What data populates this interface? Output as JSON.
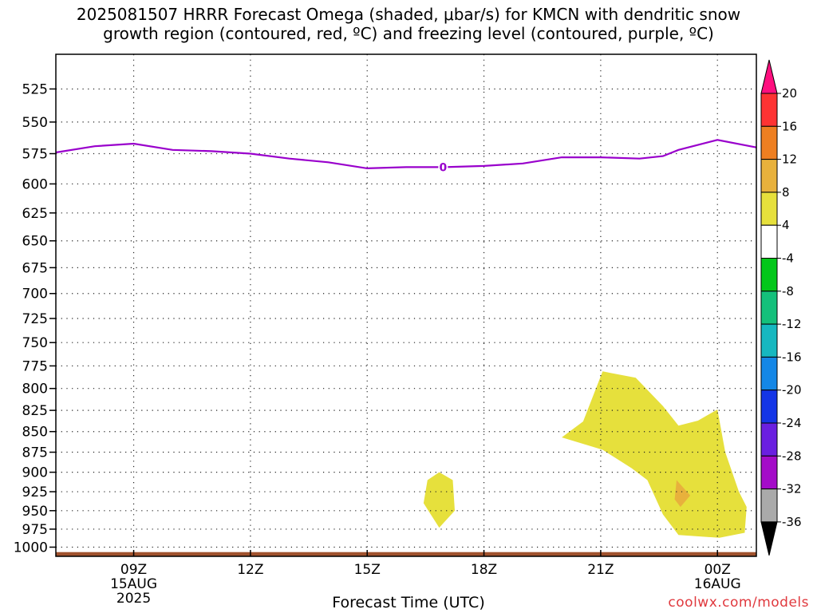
{
  "title": {
    "line1": "2025081507 HRRR Forecast Omega (shaded, μbar/s) for KMCN with dendritic snow",
    "line2": "growth region (contoured, red, ºC) and freezing level (contoured, purple, ºC)"
  },
  "credit": "coolwx.com/models",
  "chart_data": {
    "type": "heatmap",
    "xlabel": "Forecast Time (UTC)",
    "ylabel": "",
    "x_range_hours": [
      7.0,
      25.0
    ],
    "x_ticks": [
      {
        "hour": 9,
        "label": "09Z",
        "sub1": "15AUG",
        "sub2": "2025"
      },
      {
        "hour": 12,
        "label": "12Z",
        "sub1": "",
        "sub2": ""
      },
      {
        "hour": 15,
        "label": "15Z",
        "sub1": "",
        "sub2": ""
      },
      {
        "hour": 18,
        "label": "18Z",
        "sub1": "",
        "sub2": ""
      },
      {
        "hour": 21,
        "label": "21Z",
        "sub1": "",
        "sub2": ""
      },
      {
        "hour": 24,
        "label": "00Z",
        "sub1": "16AUG",
        "sub2": ""
      }
    ],
    "y_ticks": [
      525,
      550,
      575,
      600,
      625,
      650,
      675,
      700,
      725,
      750,
      775,
      800,
      825,
      850,
      875,
      900,
      925,
      950,
      975,
      1000
    ],
    "y_range_mb": [
      500,
      1013
    ],
    "y_scale": "log-pressure",
    "grid": true,
    "freezing_level": {
      "color": "#9900cc",
      "label": "0",
      "label_hour": 16.95,
      "points": [
        [
          7.0,
          574
        ],
        [
          8.0,
          569
        ],
        [
          9.0,
          567
        ],
        [
          10.0,
          572
        ],
        [
          11.0,
          573
        ],
        [
          12.0,
          575
        ],
        [
          13.0,
          579
        ],
        [
          14.0,
          582
        ],
        [
          15.0,
          587
        ],
        [
          16.0,
          586
        ],
        [
          17.0,
          586
        ],
        [
          18.0,
          585
        ],
        [
          19.0,
          583
        ],
        [
          20.0,
          578
        ],
        [
          21.0,
          578
        ],
        [
          22.0,
          579
        ],
        [
          22.6,
          577
        ],
        [
          23.0,
          572
        ],
        [
          24.0,
          564
        ],
        [
          25.0,
          570
        ]
      ]
    },
    "shaded_regions": [
      {
        "level": "4-8",
        "color": "#e6e03c",
        "points": [
          [
            16.55,
            910
          ],
          [
            16.85,
            900
          ],
          [
            17.2,
            910
          ],
          [
            17.25,
            950
          ],
          [
            16.85,
            973
          ],
          [
            16.45,
            940
          ]
        ]
      },
      {
        "level": "4-8",
        "color": "#e6e03c",
        "points": [
          [
            21.05,
            781
          ],
          [
            21.9,
            788
          ],
          [
            22.6,
            820
          ],
          [
            23.0,
            843
          ],
          [
            23.5,
            837
          ],
          [
            24.0,
            824
          ],
          [
            24.2,
            875
          ],
          [
            24.55,
            925
          ],
          [
            24.75,
            945
          ],
          [
            24.7,
            980
          ],
          [
            24.05,
            987
          ],
          [
            23.0,
            983
          ],
          [
            22.6,
            955
          ],
          [
            22.2,
            910
          ],
          [
            21.8,
            895
          ],
          [
            21.05,
            872
          ],
          [
            20.0,
            857
          ],
          [
            20.55,
            838
          ]
        ]
      },
      {
        "level": "8-12",
        "color": "#e8b13c",
        "points": [
          [
            22.95,
            910
          ],
          [
            23.3,
            930
          ],
          [
            23.05,
            945
          ],
          [
            22.9,
            935
          ]
        ]
      }
    ],
    "ground": {
      "color": "#a0522d",
      "pressure_mb": 1007
    },
    "colorbar": {
      "labels": [
        "20",
        "16",
        "12",
        "8",
        "4",
        "-4",
        "-8",
        "-12",
        "-16",
        "-20",
        "-24",
        "-28",
        "-32",
        "-36"
      ],
      "colors": [
        "#ff0f7f",
        "#fe3333",
        "#ee7f21",
        "#e8b13c",
        "#e6e03c",
        "#ffffff",
        "#03c71a",
        "#14c07b",
        "#16b8c0",
        "#1487e6",
        "#1435e6",
        "#6a1fe0",
        "#a40bc8",
        "#aaaaaa",
        "#000000"
      ]
    }
  }
}
